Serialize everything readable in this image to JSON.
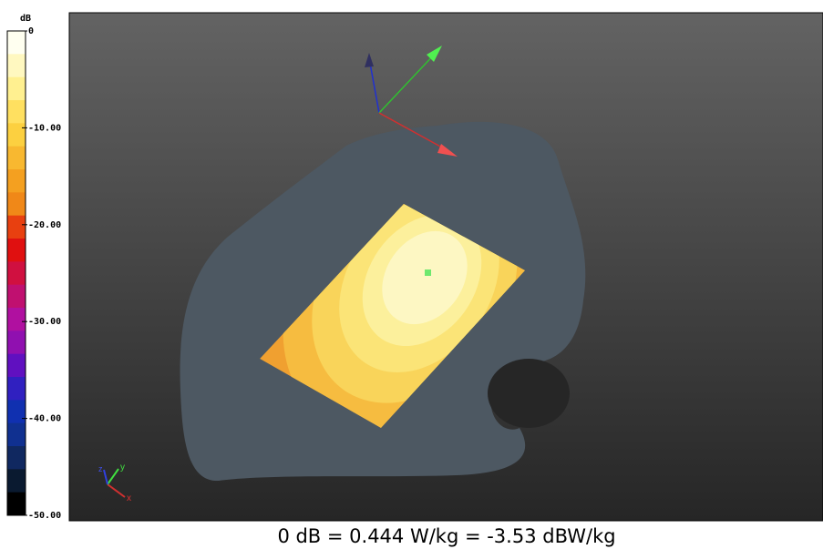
{
  "colorbar": {
    "unit": "dB",
    "labels": [
      "0",
      "-10.00",
      "-20.00",
      "-30.00",
      "-40.00",
      "-50.00"
    ]
  },
  "axes_icon": {
    "x": "x",
    "y": "y",
    "z": "z"
  },
  "caption": "0 dB = 0.444 W/kg = -3.53 dBW/kg"
}
